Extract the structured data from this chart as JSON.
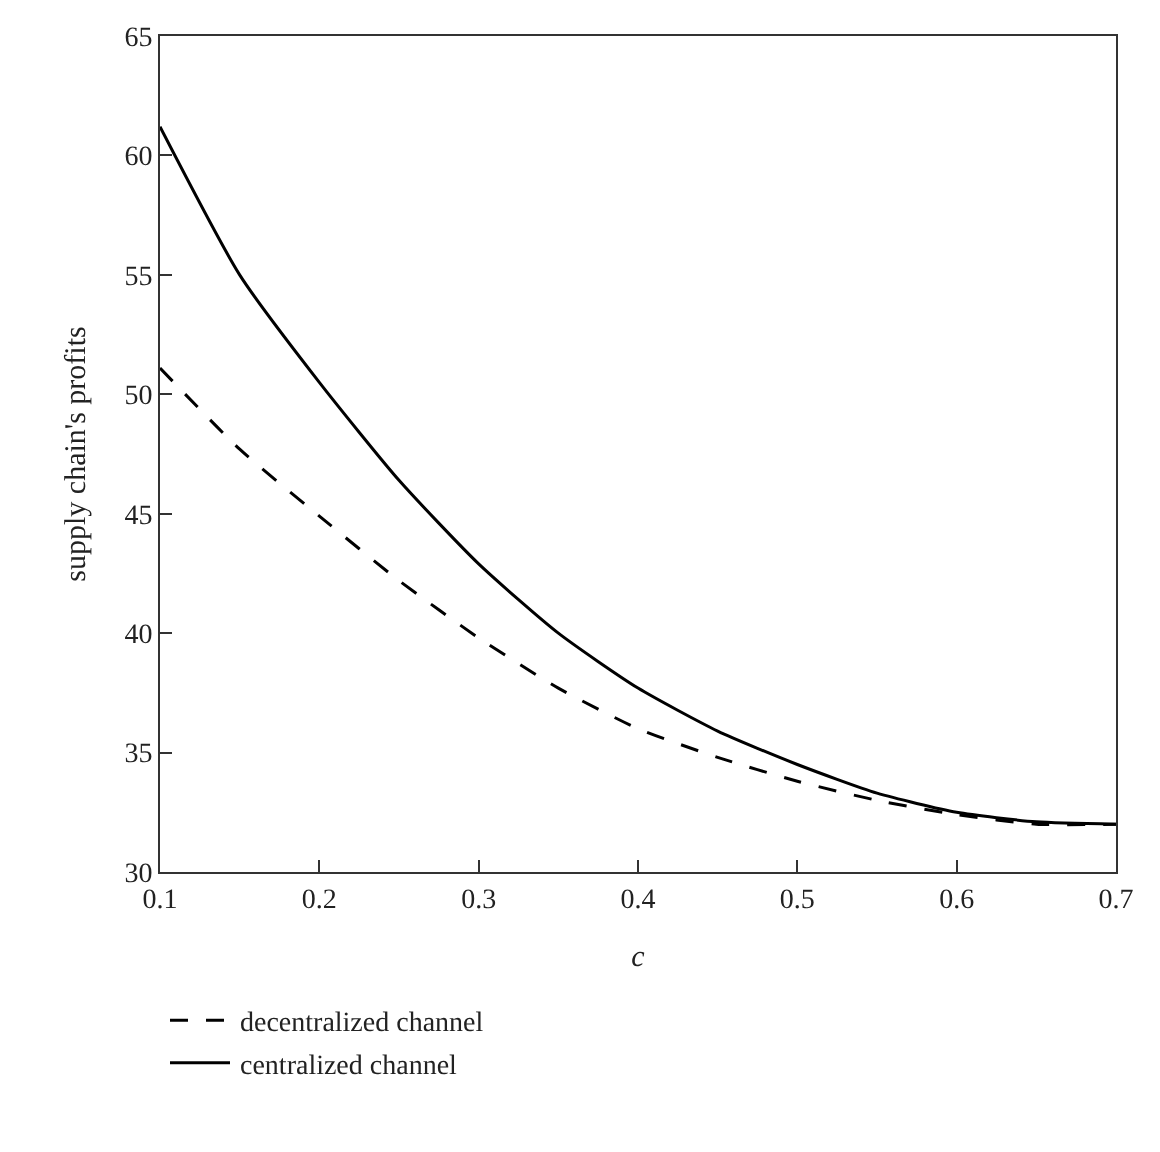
{
  "chart_data": {
    "type": "line",
    "xlabel": "c",
    "ylabel": "supply chain's profits",
    "x": [
      0.1,
      0.15,
      0.2,
      0.25,
      0.3,
      0.35,
      0.4,
      0.45,
      0.5,
      0.55,
      0.6,
      0.65,
      0.7
    ],
    "series": [
      {
        "name": "decentralized channel",
        "color": "#000000",
        "line_style": "dashed",
        "values": [
          51.1,
          47.7,
          44.9,
          42.2,
          39.8,
          37.7,
          36.0,
          34.8,
          33.8,
          33.0,
          32.4,
          32.0,
          32.0
        ]
      },
      {
        "name": "centralized channel",
        "color": "#000000",
        "line_style": "solid",
        "values": [
          61.2,
          55.0,
          50.5,
          46.4,
          42.9,
          40.0,
          37.7,
          35.9,
          34.5,
          33.3,
          32.5,
          32.1,
          32.0
        ]
      }
    ],
    "xlim": [
      0.1,
      0.7
    ],
    "xticks": [
      0.1,
      0.2,
      0.3,
      0.4,
      0.5,
      0.6,
      0.7
    ],
    "ylim": [
      30,
      65
    ],
    "yticks": [
      30,
      35,
      40,
      45,
      50,
      55,
      60,
      65
    ],
    "legend": "bottom",
    "marker": "none"
  }
}
